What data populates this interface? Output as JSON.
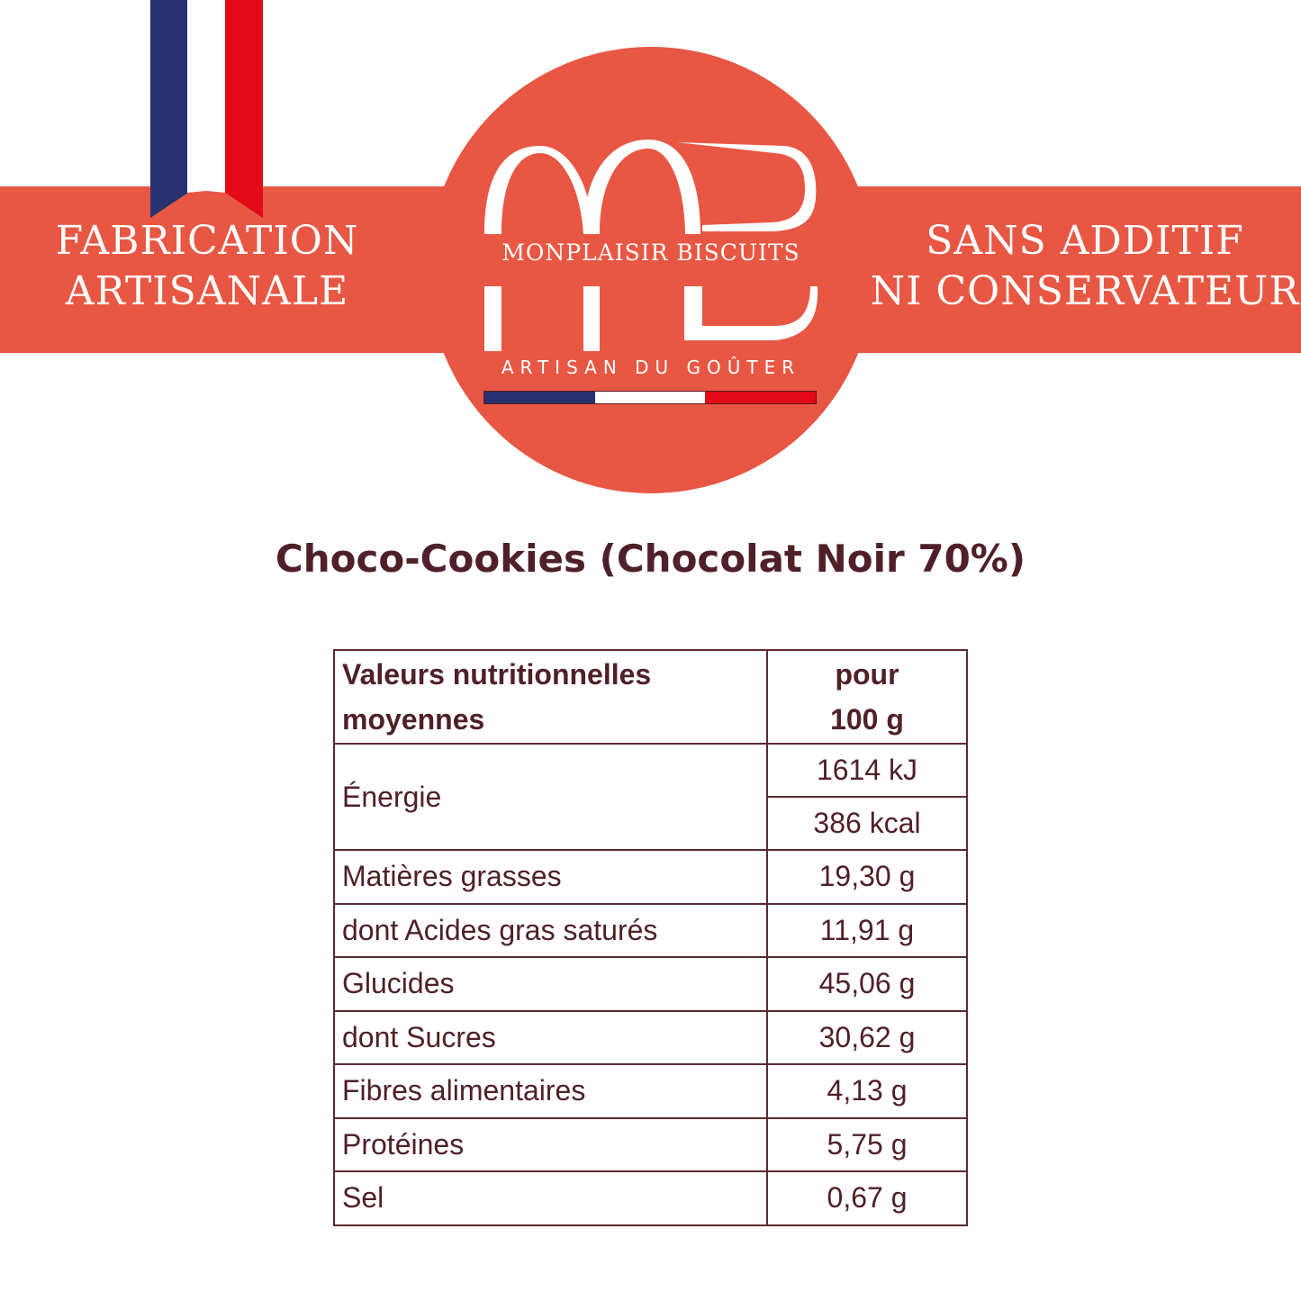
{
  "colors": {
    "accent": "#E85744",
    "text": "#4f2029",
    "flag_blue": "#283170",
    "flag_white": "#FFFFFF",
    "flag_red": "#E20A17"
  },
  "claims": {
    "left": [
      "FABRICATION",
      "ARTISANALE"
    ],
    "right": [
      "SANS ADDITIF",
      "NI CONSERVATEUR"
    ]
  },
  "logo": {
    "monogram": "MB",
    "brand": "MONPLAISIR BISCUITS",
    "tagline": "ARTISAN DU GOÛTER"
  },
  "product": {
    "title": "Choco-Cookies (Chocolat Noir 70%)"
  },
  "nutrition": {
    "header": {
      "label_line1": "Valeurs nutritionnelles",
      "label_line2": "moyennes",
      "value_line1": "pour",
      "value_line2": "100 g"
    },
    "energy": {
      "label": "Énergie",
      "kj": "1614 kJ",
      "kcal": "386 kcal"
    },
    "rows": [
      {
        "label": "Matières grasses",
        "value": "19,30 g"
      },
      {
        "label": "dont Acides gras saturés",
        "value": "11,91 g"
      },
      {
        "label": "Glucides",
        "value": "45,06 g"
      },
      {
        "label": "dont Sucres",
        "value": "30,62 g"
      },
      {
        "label": "Fibres alimentaires",
        "value": "4,13 g"
      },
      {
        "label": "Protéines",
        "value": "5,75 g"
      },
      {
        "label": "Sel",
        "value": "0,67 g"
      }
    ]
  }
}
